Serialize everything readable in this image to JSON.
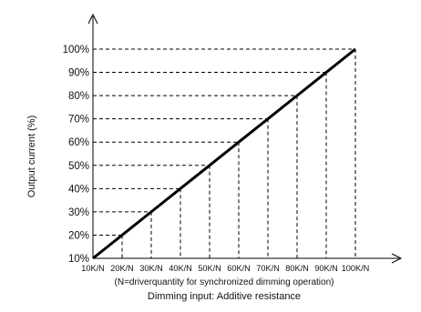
{
  "chart_data": {
    "type": "line",
    "title": "",
    "ylabel": "Output current (%)",
    "xlabel_note": "(N=driverquantity for synchronized dimming operation)",
    "xlabel": "Dimming input: Additive resistance",
    "x_ticks": [
      "10K/N",
      "20K/N",
      "30K/N",
      "40K/N",
      "50K/N",
      "60K/N",
      "70K/N",
      "80K/N",
      "90K/N",
      "100K/N"
    ],
    "y_ticks": [
      "10%",
      "20%",
      "30%",
      "40%",
      "50%",
      "60%",
      "70%",
      "80%",
      "90%",
      "100%"
    ],
    "x_values": [
      10,
      20,
      30,
      40,
      50,
      60,
      70,
      80,
      90,
      100
    ],
    "y_values": [
      10,
      20,
      30,
      40,
      50,
      60,
      70,
      80,
      90,
      100
    ],
    "xlim": [
      10,
      100
    ],
    "ylim": [
      10,
      100
    ],
    "grid": "dashed guide lines from each point to both axes",
    "legend": "none",
    "colors": {
      "line": "#000000",
      "guide": "#000000",
      "axis": "#000000"
    }
  }
}
